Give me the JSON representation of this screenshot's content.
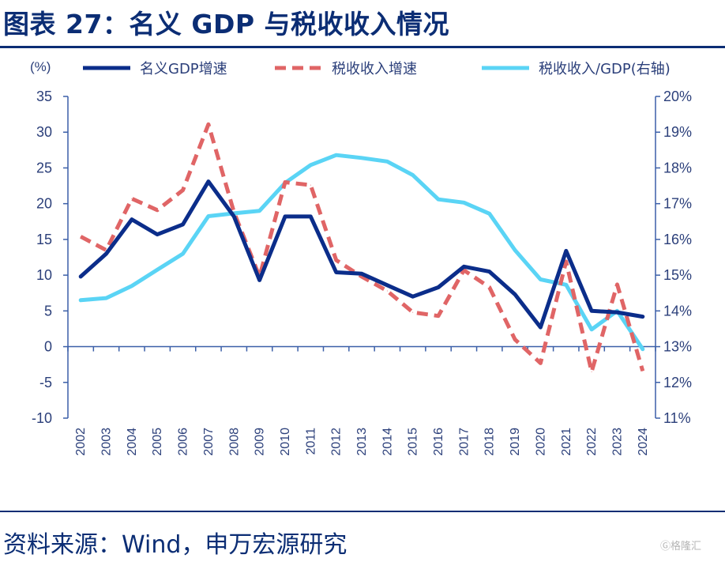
{
  "title": "图表 27：名义 GDP 与税收收入情况",
  "source": "资料来源：Wind，申万宏源研究",
  "watermark": "格隆汇",
  "chart_data": {
    "type": "line",
    "y_left_unit": "(%)",
    "ylim_left": [
      -10,
      35
    ],
    "yticks_left": [
      "35",
      "30",
      "25",
      "20",
      "15",
      "10",
      "5",
      "0",
      "-5",
      "-10"
    ],
    "ylim_right": [
      0.11,
      0.2
    ],
    "yticks_right": [
      "20%",
      "19%",
      "18%",
      "17%",
      "16%",
      "15%",
      "14%",
      "13%",
      "12%",
      "11%"
    ],
    "x": [
      "2002",
      "2003",
      "2004",
      "2005",
      "2006",
      "2007",
      "2008",
      "2009",
      "2010",
      "2011",
      "2012",
      "2013",
      "2014",
      "2015",
      "2016",
      "2017",
      "2018",
      "2019",
      "2020",
      "2021",
      "2022",
      "2023",
      "2024"
    ],
    "legend_position": "top",
    "series": [
      {
        "name": "名义GDP增速",
        "axis": "left",
        "style": "solid",
        "color": "#0b2d8a",
        "values": [
          9.8,
          13.0,
          17.8,
          15.7,
          17.1,
          23.1,
          18.2,
          9.3,
          18.2,
          18.2,
          10.4,
          10.2,
          8.6,
          7.0,
          8.3,
          11.2,
          10.5,
          7.3,
          2.7,
          13.4,
          5.0,
          4.8,
          4.2
        ]
      },
      {
        "name": "税收收入增速",
        "axis": "left",
        "style": "dashed",
        "color": "#e06566",
        "values": [
          15.4,
          13.5,
          20.7,
          19.1,
          21.9,
          31.1,
          18.8,
          9.8,
          23.0,
          22.6,
          12.1,
          9.8,
          7.8,
          4.8,
          4.3,
          10.7,
          8.3,
          1.0,
          -2.3,
          11.9,
          -3.5,
          8.7,
          -3.4
        ]
      },
      {
        "name": "税收收入/GDP(右轴)",
        "axis": "right",
        "style": "solid",
        "color": "#5ad4f5",
        "values": [
          0.143,
          0.1436,
          0.147,
          0.1515,
          0.156,
          0.1665,
          0.1673,
          0.168,
          0.1758,
          0.1808,
          0.1836,
          0.1828,
          0.1818,
          0.178,
          0.1712,
          0.1703,
          0.1672,
          0.157,
          0.1488,
          0.1473,
          0.1348,
          0.14,
          0.1293
        ]
      }
    ]
  }
}
